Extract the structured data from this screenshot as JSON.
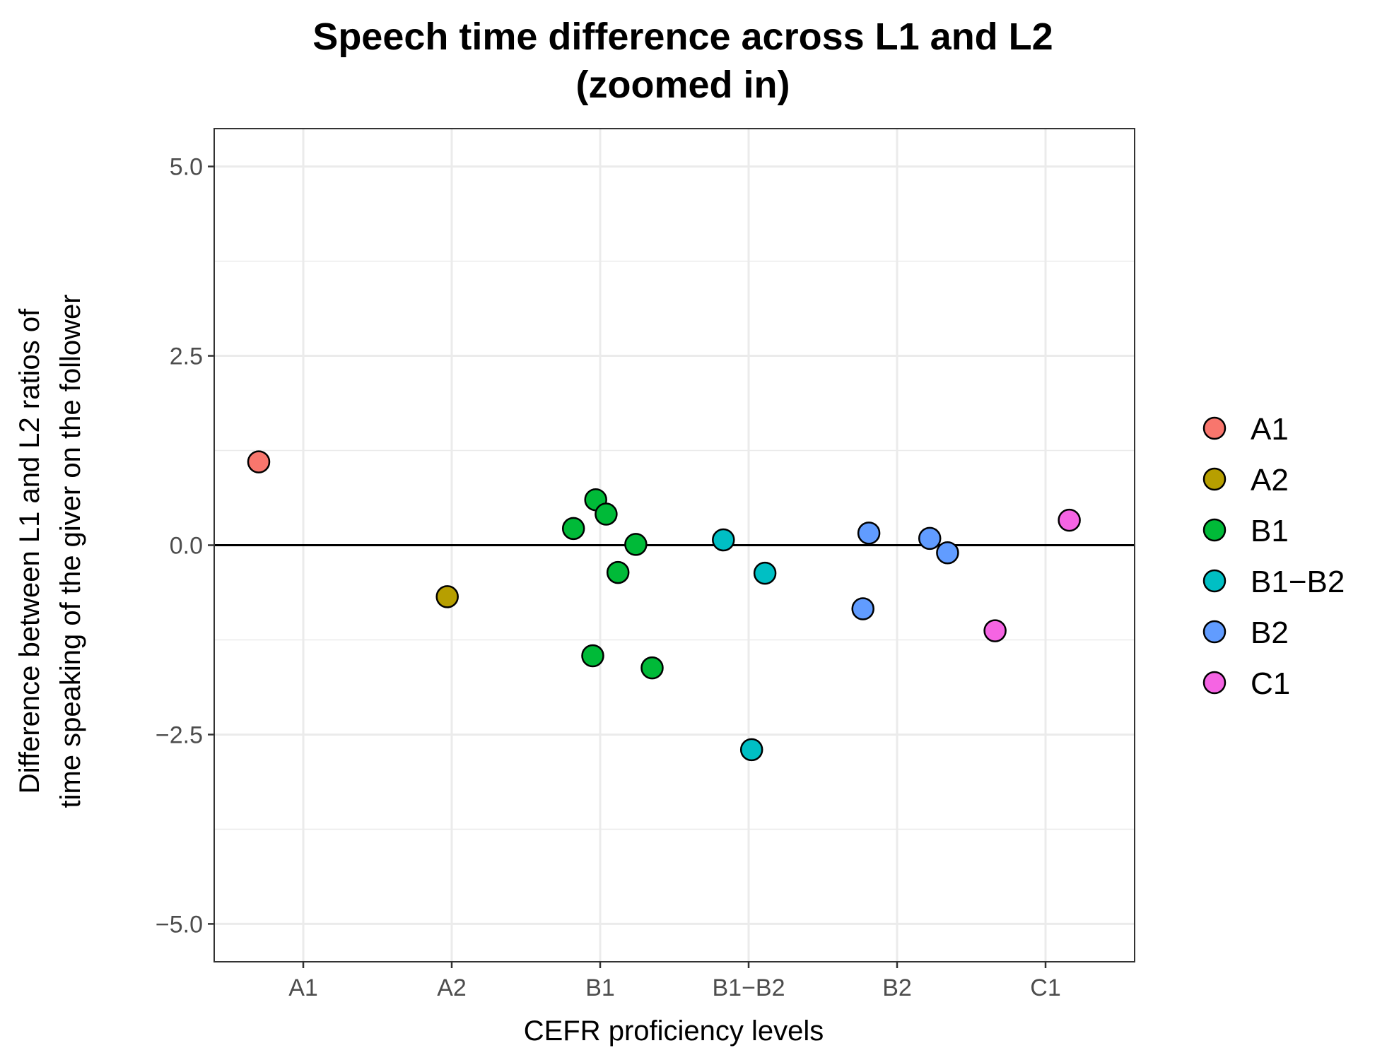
{
  "chart_data": {
    "type": "scatter",
    "title_lines": [
      "Speech time difference across L1 and L2",
      "(zoomed in)"
    ],
    "xlabel": "CEFR proficiency levels",
    "ylabel_lines": [
      "Difference between L1 and L2 ratios of",
      "time speaking of the giver on the follower"
    ],
    "categories": [
      "A1",
      "A2",
      "B1",
      "B1−B2",
      "B2",
      "C1"
    ],
    "ylim": [
      -5.5,
      5.5
    ],
    "y_ticks": [
      5.0,
      2.5,
      0.0,
      -2.5,
      -5.0
    ],
    "y_tick_labels": [
      "5.0",
      "2.5",
      "0.0",
      "−2.5",
      "−5.0"
    ],
    "hline": 0,
    "grid": true,
    "legend_position": "right",
    "colors": {
      "A1": "#F8766D",
      "A2": "#B79F00",
      "B1": "#00BA38",
      "B1−B2": "#00BFC4",
      "B2": "#619CFF",
      "C1": "#F564E3"
    },
    "legend": [
      {
        "name": "A1"
      },
      {
        "name": "A2"
      },
      {
        "name": "B1"
      },
      {
        "name": "B1−B2"
      },
      {
        "name": "B2"
      },
      {
        "name": "C1"
      }
    ],
    "points": [
      {
        "group": "A1",
        "x": 0.7,
        "y": 1.1
      },
      {
        "group": "A2",
        "x": 1.97,
        "y": -0.68
      },
      {
        "group": "B1",
        "x": 2.82,
        "y": 0.22
      },
      {
        "group": "B1",
        "x": 2.97,
        "y": 0.6
      },
      {
        "group": "B1",
        "x": 3.04,
        "y": 0.41
      },
      {
        "group": "B1",
        "x": 3.12,
        "y": -0.36
      },
      {
        "group": "B1",
        "x": 3.24,
        "y": 0.01
      },
      {
        "group": "B1",
        "x": 2.95,
        "y": -1.46
      },
      {
        "group": "B1",
        "x": 3.35,
        "y": -1.62
      },
      {
        "group": "B1−B2",
        "x": 3.83,
        "y": 0.07
      },
      {
        "group": "B1−B2",
        "x": 4.11,
        "y": -0.37
      },
      {
        "group": "B1−B2",
        "x": 4.02,
        "y": -2.7
      },
      {
        "group": "B2",
        "x": 4.81,
        "y": 0.16
      },
      {
        "group": "B2",
        "x": 4.77,
        "y": -0.84
      },
      {
        "group": "B2",
        "x": 5.22,
        "y": 0.09
      },
      {
        "group": "B2",
        "x": 5.34,
        "y": -0.1
      },
      {
        "group": "C1",
        "x": 5.66,
        "y": -1.13
      },
      {
        "group": "C1",
        "x": 6.16,
        "y": 0.33
      }
    ]
  }
}
